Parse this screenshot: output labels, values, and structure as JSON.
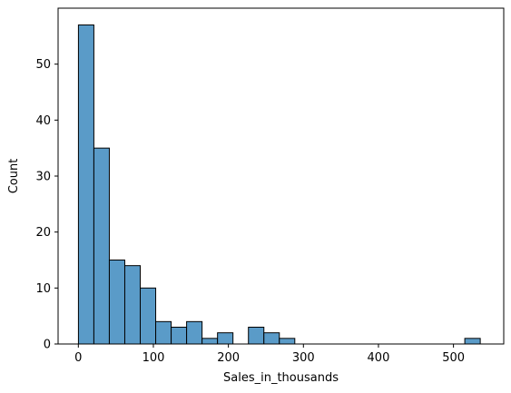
{
  "chart_data": {
    "type": "bar",
    "xlabel": "Sales_in_thousands",
    "ylabel": "Count",
    "xlim": [
      -27,
      567
    ],
    "ylim": [
      0,
      60
    ],
    "grid": false,
    "x_ticks": [
      0,
      100,
      200,
      300,
      400,
      500
    ],
    "y_ticks": [
      0,
      10,
      20,
      30,
      40,
      50
    ],
    "bin_edges": [
      0.11,
      20.7,
      41.3,
      61.9,
      82.5,
      103.1,
      123.7,
      144.3,
      164.9,
      185.5,
      206.1,
      226.7,
      247.3,
      267.9,
      288.5,
      309.1,
      329.7,
      350.3,
      370.9,
      391.5,
      412.1,
      432.7,
      453.3,
      473.9,
      494.5,
      515.1,
      535.7
    ],
    "counts": [
      57,
      35,
      15,
      14,
      10,
      4,
      3,
      4,
      1,
      2,
      0,
      3,
      2,
      1,
      0,
      0,
      0,
      0,
      0,
      0,
      0,
      0,
      0,
      0,
      0,
      1
    ],
    "bar_color": "#5a9bc8",
    "edge_color": "#000000"
  }
}
